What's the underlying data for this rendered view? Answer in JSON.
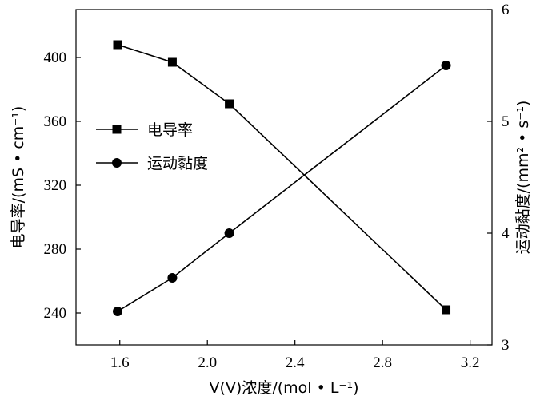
{
  "chart_data": {
    "type": "line",
    "x": [
      1.59,
      1.84,
      2.1,
      3.09
    ],
    "xlabel": "V(V)浓度/(mol • L⁻¹)",
    "xlim": [
      1.4,
      3.3
    ],
    "xticks": [
      1.6,
      2.0,
      2.4,
      2.8,
      3.2
    ],
    "xtick_labels": [
      "1.6",
      "2.0",
      "2.4",
      "2.8",
      "3.2"
    ],
    "left_axis": {
      "label": "电导率/(mS • cm⁻¹)",
      "lim": [
        220,
        430
      ],
      "ticks": [
        240,
        280,
        320,
        360,
        400
      ],
      "tick_labels": [
        "240",
        "280",
        "320",
        "360",
        "400"
      ]
    },
    "right_axis": {
      "label": "运动黏度/(mm² • s⁻¹)",
      "lim": [
        3,
        6
      ],
      "ticks": [
        3,
        4,
        5,
        6
      ],
      "tick_labels": [
        "3",
        "4",
        "5",
        "6"
      ]
    },
    "series": [
      {
        "name": "电导率",
        "axis": "left",
        "marker": "square",
        "values": [
          408,
          397,
          371,
          242
        ]
      },
      {
        "name": "运动黏度",
        "axis": "right",
        "marker": "circle",
        "values": [
          3.3,
          3.6,
          4.0,
          5.5
        ]
      }
    ],
    "legend_position": "middle-left",
    "grid": false,
    "colors": {
      "line": "#000000",
      "marker": "#000000",
      "axis": "#000000"
    }
  }
}
